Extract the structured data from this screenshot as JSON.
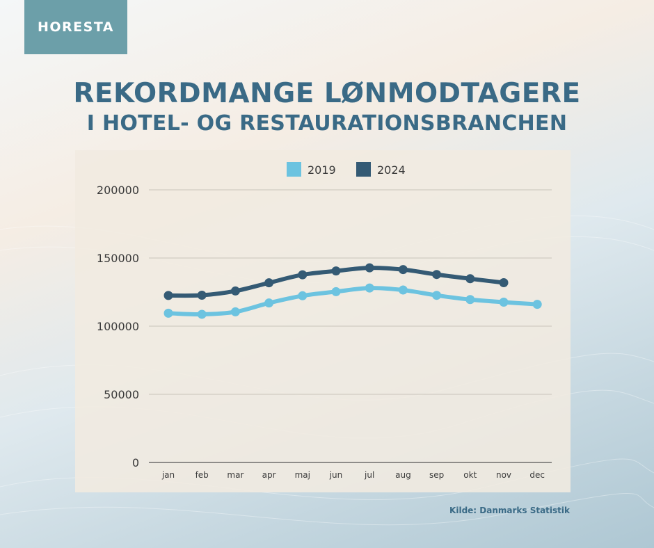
{
  "logo": {
    "text": "HORESTA"
  },
  "title_line1": "REKORDMANGE LØNMODTAGERE",
  "title_line2": "I HOTEL- OG RESTAURATIONSBRANCHEN",
  "source": "Kilde: Danmarks Statistik",
  "colors": {
    "series2019": "#6cc3e0",
    "series2024": "#345a74",
    "accent": "#6c9fa9",
    "title": "#3a6a86"
  },
  "chart_data": {
    "type": "line",
    "title": "",
    "xlabel": "",
    "ylabel": "",
    "categories": [
      "jan",
      "feb",
      "mar",
      "apr",
      "maj",
      "jun",
      "jul",
      "aug",
      "sep",
      "okt",
      "nov",
      "dec"
    ],
    "series": [
      {
        "name": "2019",
        "color": "#6cc3e0",
        "values": [
          109500,
          108700,
          110500,
          117000,
          122300,
          125300,
          128000,
          126500,
          122600,
          119500,
          117600,
          116000
        ]
      },
      {
        "name": "2024",
        "color": "#345a74",
        "values": [
          122500,
          122700,
          125800,
          131800,
          137700,
          140500,
          142800,
          141500,
          137900,
          134800,
          131900,
          null
        ]
      }
    ],
    "ylim": [
      0,
      200000
    ],
    "yticks": [
      0,
      50000,
      100000,
      150000,
      200000
    ],
    "grid": true,
    "legend": "top-center"
  }
}
